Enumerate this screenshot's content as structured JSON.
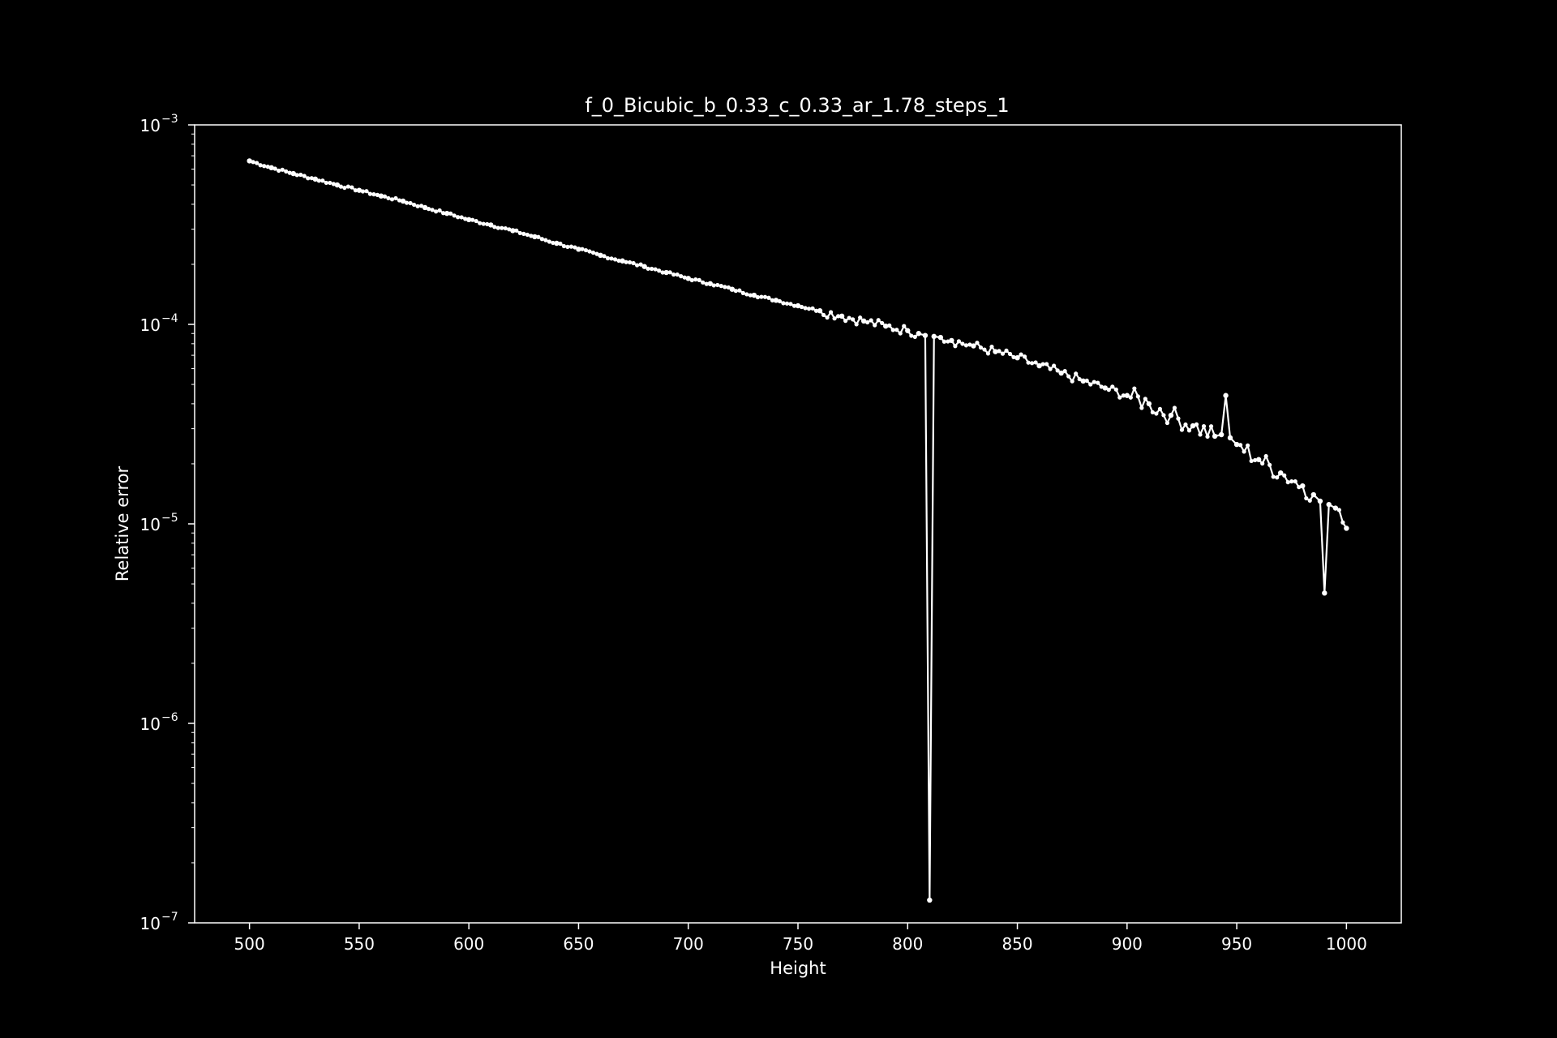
{
  "chart_data": {
    "type": "line",
    "title": "f_0_Bicubic_b_0.33_c_0.33_ar_1.78_steps_1",
    "xlabel": "Height",
    "ylabel": "Relative error",
    "xlim": [
      475,
      1025
    ],
    "ylim": [
      1e-07,
      0.001
    ],
    "yscale": "log",
    "grid": false,
    "legend": "none",
    "xticks": [
      500,
      550,
      600,
      650,
      700,
      750,
      800,
      850,
      900,
      950,
      1000
    ],
    "yticks": [
      {
        "value": 1e-07,
        "base": "10",
        "exp": "−7"
      },
      {
        "value": 1e-06,
        "base": "10",
        "exp": "−6"
      },
      {
        "value": 1e-05,
        "base": "10",
        "exp": "−5"
      },
      {
        "value": 0.0001,
        "base": "10",
        "exp": "−4"
      },
      {
        "value": 0.001,
        "base": "10",
        "exp": "−3"
      }
    ],
    "colors": {
      "background": "#000000",
      "series": "#ffffff",
      "axes": "#ffffff"
    },
    "series": [
      {
        "marker": "circle",
        "x": [
          500,
          510,
          520,
          530,
          540,
          550,
          560,
          570,
          580,
          590,
          600,
          610,
          620,
          630,
          640,
          650,
          660,
          670,
          680,
          690,
          700,
          710,
          720,
          730,
          740,
          750,
          760,
          770,
          780,
          790,
          800,
          805,
          808,
          810,
          812,
          815,
          820,
          830,
          840,
          850,
          860,
          870,
          880,
          890,
          900,
          910,
          920,
          930,
          940,
          943,
          945,
          947,
          950,
          960,
          970,
          980,
          985,
          988,
          990,
          992,
          995,
          1000
        ],
        "y": [
          0.00066,
          0.00061,
          0.00057,
          0.000535,
          0.0005,
          0.00047,
          0.00044,
          0.000415,
          0.000385,
          0.00036,
          0.000335,
          0.000315,
          0.000295,
          0.000275,
          0.000255,
          0.000238,
          0.000222,
          0.000208,
          0.000195,
          0.000182,
          0.00017,
          0.00016,
          0.00015,
          0.00014,
          0.000132,
          0.000124,
          0.000117,
          0.00011,
          0.000104,
          9.8e-05,
          9.3e-05,
          9e-05,
          8.8e-05,
          1.3e-07,
          8.7e-05,
          8.6e-05,
          8.3e-05,
          7.8e-05,
          7.3e-05,
          6.8e-05,
          6.2e-05,
          5.7e-05,
          5.2e-05,
          4.8e-05,
          4.4e-05,
          4e-05,
          3.5e-05,
          3.1e-05,
          2.75e-05,
          2.8e-05,
          4.4e-05,
          2.7e-05,
          2.5e-05,
          2.1e-05,
          1.8e-05,
          1.55e-05,
          1.4e-05,
          1.3e-05,
          4.5e-06,
          1.25e-05,
          1.2e-05,
          9.5e-06
        ]
      }
    ]
  }
}
